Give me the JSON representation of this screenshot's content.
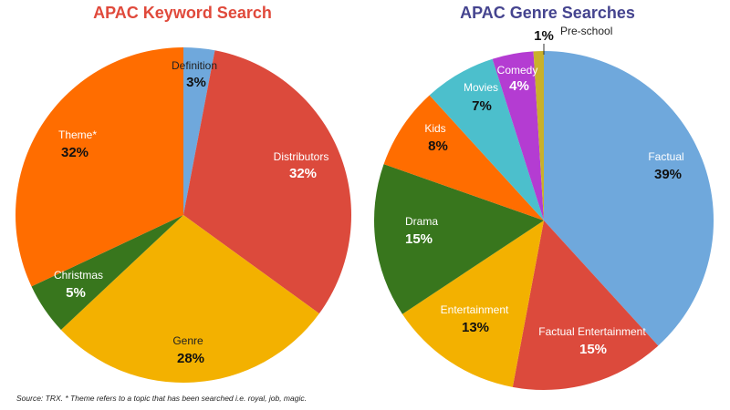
{
  "chart_data": [
    {
      "type": "pie",
      "title": "APAC Keyword Search",
      "title_color": "#e0493b",
      "slices": [
        {
          "label": "Definition",
          "value": 3,
          "display": "3%",
          "color": "#6fa8dc"
        },
        {
          "label": "Distributors",
          "value": 32,
          "display": "32%",
          "color": "#dc4a3c"
        },
        {
          "label": "Genre",
          "value": 28,
          "display": "28%",
          "color": "#f3b100"
        },
        {
          "label": "Christmas",
          "value": 5,
          "display": "5%",
          "color": "#38761d"
        },
        {
          "label": "Theme*",
          "value": 32,
          "display": "32%",
          "color": "#ff6d00"
        }
      ]
    },
    {
      "type": "pie",
      "title": "APAC Genre Searches",
      "title_color": "#45448f",
      "slices": [
        {
          "label": "Factual",
          "value": 39,
          "display": "39%",
          "color": "#6fa8dc"
        },
        {
          "label": "Factual Entertainment",
          "value": 15,
          "display": "15%",
          "color": "#dc4a3c"
        },
        {
          "label": "Entertainment",
          "value": 13,
          "display": "13%",
          "color": "#f3b100"
        },
        {
          "label": "Drama",
          "value": 15,
          "display": "15%",
          "color": "#38761d"
        },
        {
          "label": "Kids",
          "value": 8,
          "display": "8%",
          "color": "#ff6d00"
        },
        {
          "label": "Movies",
          "value": 7,
          "display": "7%",
          "color": "#4cbfcc"
        },
        {
          "label": "Comedy",
          "value": 4,
          "display": "4%",
          "color": "#b43cd2"
        },
        {
          "label": "Pre-school",
          "value": 1,
          "display": "1%",
          "color": "#c9b12a"
        }
      ]
    }
  ],
  "footnote": "Source: TRX. * Theme refers to a topic that has been searched i.e. royal, job, magic."
}
